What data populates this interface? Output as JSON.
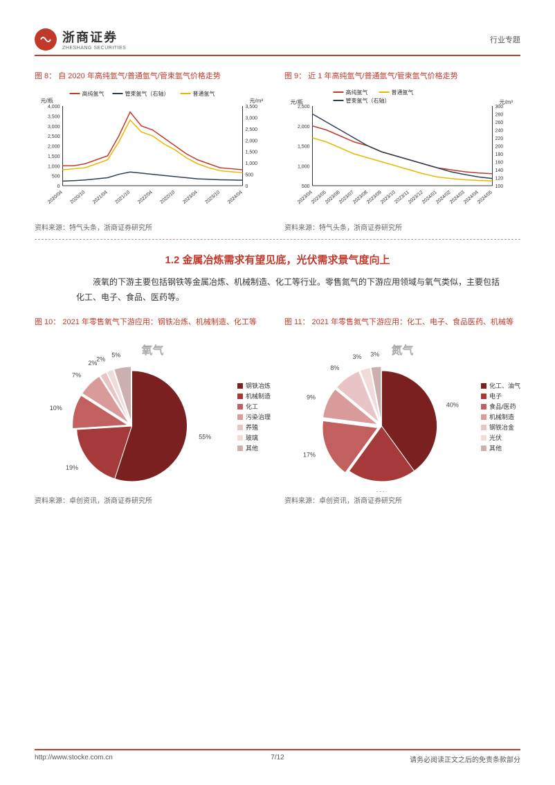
{
  "header": {
    "company_cn": "浙商证券",
    "company_en": "ZHESHANG SECURITIES",
    "right_label": "行业专题"
  },
  "chart8": {
    "title": "图 8：   自 2020 年高纯氩气/普通氩气/管束氩气价格走势",
    "source": "资料来源：特气头条，浙商证券研究所",
    "type": "line",
    "y_left_label": "元/瓶",
    "y_right_label": "元/m³",
    "y_left_max": 4000,
    "y_left_step": 500,
    "y_right_max": 3500,
    "y_right_step": 500,
    "series": [
      {
        "name": "高纯氩气",
        "color": "#c0392b",
        "axis": "left"
      },
      {
        "name": "管束氩气（右轴）",
        "color": "#2c3e50",
        "axis": "right"
      },
      {
        "name": "普通氩气",
        "color": "#e6b800",
        "axis": "left"
      }
    ],
    "x_labels": [
      "2020/04",
      "2020/10",
      "2021/04",
      "2021/10",
      "2022/04",
      "2022/10",
      "2023/04",
      "2023/10",
      "2024/04"
    ],
    "data": {
      "high_purity": [
        1000,
        1000,
        1100,
        1300,
        1500,
        2500,
        3700,
        3000,
        2800,
        2400,
        2000,
        1600,
        1300,
        1100,
        900,
        850,
        800
      ],
      "ordinary": [
        800,
        850,
        900,
        1100,
        1300,
        2200,
        3300,
        2700,
        2500,
        2100,
        1800,
        1400,
        1100,
        900,
        750,
        700,
        650
      ],
      "tube": [
        200,
        220,
        250,
        300,
        350,
        500,
        600,
        550,
        500,
        450,
        400,
        350,
        300,
        280,
        260,
        250,
        240
      ]
    },
    "background_color": "#ffffff",
    "axis_color": "#333333",
    "grid_color": "#e0e0e0"
  },
  "chart9": {
    "title": "图 9：   近 1 年高纯氩气/普通氩气/管束氩气价格走势",
    "source": "资料来源：特气头条，浙商证券研究所",
    "type": "line",
    "y_left_label": "元/瓶",
    "y_right_label": "元/m³",
    "y_left_min": 500,
    "y_left_max": 2500,
    "y_left_step": 500,
    "y_right_min": 100,
    "y_right_max": 300,
    "y_right_step": 20,
    "series": [
      {
        "name": "高纯氩气",
        "color": "#c0392b",
        "axis": "left"
      },
      {
        "name": "普通氩气",
        "color": "#e6b800",
        "axis": "left"
      },
      {
        "name": "管束氩气（右轴）",
        "color": "#2c3e50",
        "axis": "right"
      }
    ],
    "x_labels": [
      "2023/04",
      "2023/05",
      "2023/06",
      "2023/07",
      "2023/08",
      "2023/09",
      "2023/10",
      "2023/11",
      "2023/12",
      "2024/01",
      "2024/02",
      "2024/03",
      "2024/04",
      "2024/05"
    ],
    "data": {
      "high_purity": [
        2000,
        1900,
        1750,
        1600,
        1500,
        1350,
        1250,
        1150,
        1050,
        950,
        900,
        850,
        820,
        800
      ],
      "ordinary": [
        1700,
        1600,
        1450,
        1300,
        1200,
        1100,
        1000,
        900,
        800,
        720,
        680,
        650,
        630,
        620
      ],
      "tube": [
        280,
        260,
        240,
        220,
        200,
        185,
        175,
        165,
        155,
        145,
        135,
        128,
        122,
        118
      ]
    },
    "background_color": "#ffffff"
  },
  "section": {
    "title": "1.2 金属冶炼需求有望见底，光伏需求景气度向上",
    "paragraph": "液氧的下游主要包括钢铁等金属冶炼、机械制造、化工等行业。零售氮气的下游应用领域与氧气类似，主要包括化工、电子、食品、医药等。"
  },
  "chart10": {
    "title": "图 10：   2021 年零售氧气下游应用：钢铁冶炼、机械制造、化工等",
    "subtitle": "氧气",
    "source": "资料来源：卓创资讯，浙商证券研究所",
    "type": "pie",
    "slices": [
      {
        "label": "钢铁冶炼",
        "value": 55,
        "color": "#7a2020",
        "label_shown": "55%"
      },
      {
        "label": "机械制造",
        "value": 19,
        "color": "#a63a3a",
        "label_shown": "19%"
      },
      {
        "label": "化工",
        "value": 10,
        "color": "#c26060",
        "label_shown": "10%"
      },
      {
        "label": "污染治理",
        "value": 7,
        "color": "#d99a9a",
        "label_shown": "7%"
      },
      {
        "label": "养殖",
        "value": 2,
        "color": "#e8c4c4",
        "label_shown": "2%"
      },
      {
        "label": "玻璃",
        "value": 2,
        "color": "#f0dada",
        "label_shown": "2%"
      },
      {
        "label": "其他",
        "value": 5,
        "color": "#ccb0b0",
        "label_shown": "5%"
      }
    ]
  },
  "chart11": {
    "title": "图 11：   2021 年零售氮气下游应用：化工、电子、食品医药、机械等",
    "subtitle": "氮气",
    "source": "资料来源：卓创资讯，浙商证券研究所",
    "type": "pie",
    "slices": [
      {
        "label": "化工、油气",
        "value": 40,
        "color": "#7a2020",
        "label_shown": "40%"
      },
      {
        "label": "电子",
        "value": 20,
        "color": "#a63a3a",
        "label_shown": "20%"
      },
      {
        "label": "食品/医药",
        "value": 17,
        "color": "#c26060",
        "label_shown": "17%"
      },
      {
        "label": "机械制造",
        "value": 9,
        "color": "#d99a9a",
        "label_shown": "9%"
      },
      {
        "label": "钢铁冶金",
        "value": 8,
        "color": "#e8c4c4",
        "label_shown": "8%"
      },
      {
        "label": "光伏",
        "value": 3,
        "color": "#f0dada",
        "label_shown": "3%"
      },
      {
        "label": "其他",
        "value": 3,
        "color": "#ccb0b0",
        "label_shown": "3%"
      }
    ]
  },
  "footer": {
    "url": "http://www.stocke.com.cn",
    "page": "7/12",
    "disclaimer": "请务必阅读正文之后的免责条款部分"
  }
}
